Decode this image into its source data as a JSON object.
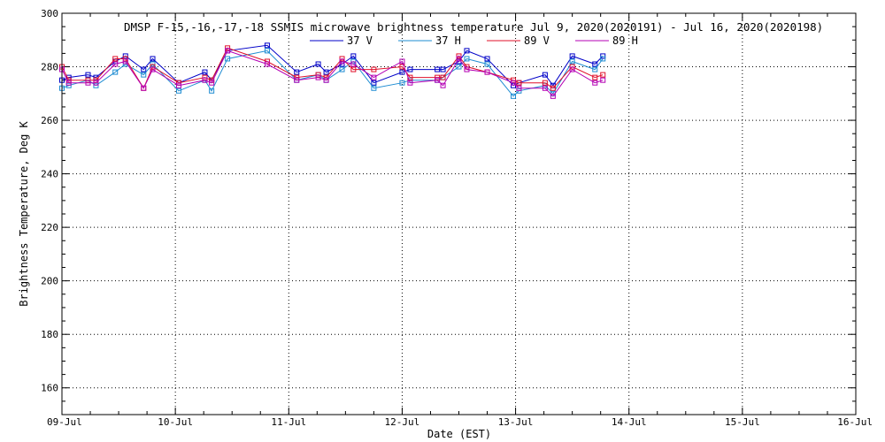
{
  "chart_data": {
    "type": "line",
    "title": "DMSP F-15,-16,-17,-18 SSMIS microwave brightness temperature Jul  9, 2020(2020191) - Jul 16, 2020(2020198)",
    "xlabel": "Date (EST)",
    "ylabel": "Brightness Temperature, Deg K",
    "xlim": [
      0,
      7
    ],
    "ylim": [
      150,
      300
    ],
    "x_ticks": [
      {
        "v": 0,
        "label": "09-Jul"
      },
      {
        "v": 1,
        "label": "10-Jul"
      },
      {
        "v": 2,
        "label": "11-Jul"
      },
      {
        "v": 3,
        "label": "12-Jul"
      },
      {
        "v": 4,
        "label": "13-Jul"
      },
      {
        "v": 5,
        "label": "14-Jul"
      },
      {
        "v": 6,
        "label": "15-Jul"
      },
      {
        "v": 7,
        "label": "16-Jul"
      }
    ],
    "y_ticks": [
      160,
      180,
      200,
      220,
      240,
      260,
      280,
      300
    ],
    "grid": true,
    "legend_position": "top",
    "series": [
      {
        "name": "37 V",
        "color": "#0000c8",
        "points": [
          [
            0.0,
            275
          ],
          [
            0.06,
            276
          ],
          [
            0.23,
            277
          ],
          [
            0.3,
            276
          ],
          [
            0.47,
            282
          ],
          [
            0.56,
            284
          ],
          [
            0.72,
            279
          ],
          [
            0.8,
            283
          ],
          [
            1.03,
            274
          ],
          [
            1.26,
            278
          ],
          [
            1.32,
            275
          ],
          [
            1.46,
            286
          ],
          [
            1.81,
            288
          ],
          [
            2.07,
            278
          ],
          [
            2.26,
            281
          ],
          [
            2.33,
            278
          ],
          [
            2.47,
            281
          ],
          [
            2.57,
            284
          ],
          [
            2.75,
            274
          ],
          [
            3.0,
            278
          ],
          [
            3.07,
            279
          ],
          [
            3.31,
            279
          ],
          [
            3.36,
            279
          ],
          [
            3.5,
            282
          ],
          [
            3.57,
            286
          ],
          [
            3.75,
            283
          ],
          [
            3.98,
            273
          ],
          [
            4.03,
            274
          ],
          [
            4.26,
            277
          ],
          [
            4.33,
            273
          ],
          [
            4.5,
            284
          ],
          [
            4.7,
            281
          ],
          [
            4.77,
            284
          ]
        ]
      },
      {
        "name": "37 H",
        "color": "#1e8cd2",
        "points": [
          [
            0.0,
            272
          ],
          [
            0.06,
            273
          ],
          [
            0.23,
            275
          ],
          [
            0.3,
            273
          ],
          [
            0.47,
            278
          ],
          [
            0.56,
            281
          ],
          [
            0.72,
            277
          ],
          [
            0.8,
            281
          ],
          [
            1.03,
            271
          ],
          [
            1.26,
            275
          ],
          [
            1.32,
            271
          ],
          [
            1.46,
            283
          ],
          [
            1.81,
            286
          ],
          [
            2.07,
            275
          ],
          [
            2.26,
            277
          ],
          [
            2.33,
            275
          ],
          [
            2.47,
            279
          ],
          [
            2.57,
            282
          ],
          [
            2.75,
            272
          ],
          [
            3.0,
            274
          ],
          [
            3.07,
            275
          ],
          [
            3.31,
            275
          ],
          [
            3.36,
            276
          ],
          [
            3.5,
            280
          ],
          [
            3.57,
            283
          ],
          [
            3.75,
            281
          ],
          [
            3.98,
            269
          ],
          [
            4.03,
            271
          ],
          [
            4.26,
            273
          ],
          [
            4.33,
            270
          ],
          [
            4.5,
            282
          ],
          [
            4.7,
            279
          ],
          [
            4.77,
            283
          ]
        ]
      },
      {
        "name": "89 V",
        "color": "#e0102a",
        "points": [
          [
            0.0,
            280
          ],
          [
            0.06,
            275
          ],
          [
            0.23,
            275
          ],
          [
            0.3,
            275
          ],
          [
            0.47,
            283
          ],
          [
            0.56,
            283
          ],
          [
            0.72,
            272
          ],
          [
            0.8,
            280
          ],
          [
            1.03,
            274
          ],
          [
            1.26,
            276
          ],
          [
            1.32,
            275
          ],
          [
            1.46,
            287
          ],
          [
            1.81,
            282
          ],
          [
            2.07,
            276
          ],
          [
            2.26,
            277
          ],
          [
            2.33,
            276
          ],
          [
            2.47,
            283
          ],
          [
            2.57,
            279
          ],
          [
            2.75,
            279
          ],
          [
            3.0,
            280
          ],
          [
            3.07,
            276
          ],
          [
            3.31,
            276
          ],
          [
            3.36,
            276
          ],
          [
            3.5,
            284
          ],
          [
            3.57,
            280
          ],
          [
            3.75,
            278
          ],
          [
            3.98,
            275
          ],
          [
            4.03,
            274
          ],
          [
            4.26,
            274
          ],
          [
            4.33,
            272
          ],
          [
            4.5,
            280
          ],
          [
            4.7,
            276
          ],
          [
            4.77,
            277
          ]
        ]
      },
      {
        "name": "89 H",
        "color": "#b400b4",
        "points": [
          [
            0.0,
            279
          ],
          [
            0.06,
            274
          ],
          [
            0.23,
            274
          ],
          [
            0.3,
            274
          ],
          [
            0.47,
            281
          ],
          [
            0.56,
            282
          ],
          [
            0.72,
            272
          ],
          [
            0.8,
            279
          ],
          [
            1.03,
            273
          ],
          [
            1.26,
            275
          ],
          [
            1.32,
            274
          ],
          [
            1.46,
            286
          ],
          [
            1.81,
            281
          ],
          [
            2.07,
            275
          ],
          [
            2.26,
            276
          ],
          [
            2.33,
            275
          ],
          [
            2.47,
            282
          ],
          [
            2.57,
            281
          ],
          [
            2.75,
            276
          ],
          [
            3.0,
            282
          ],
          [
            3.07,
            274
          ],
          [
            3.31,
            275
          ],
          [
            3.36,
            273
          ],
          [
            3.5,
            283
          ],
          [
            3.57,
            279
          ],
          [
            3.75,
            278
          ],
          [
            3.98,
            274
          ],
          [
            4.03,
            272
          ],
          [
            4.26,
            272
          ],
          [
            4.33,
            269
          ],
          [
            4.5,
            279
          ],
          [
            4.7,
            274
          ],
          [
            4.77,
            275
          ]
        ]
      }
    ]
  }
}
